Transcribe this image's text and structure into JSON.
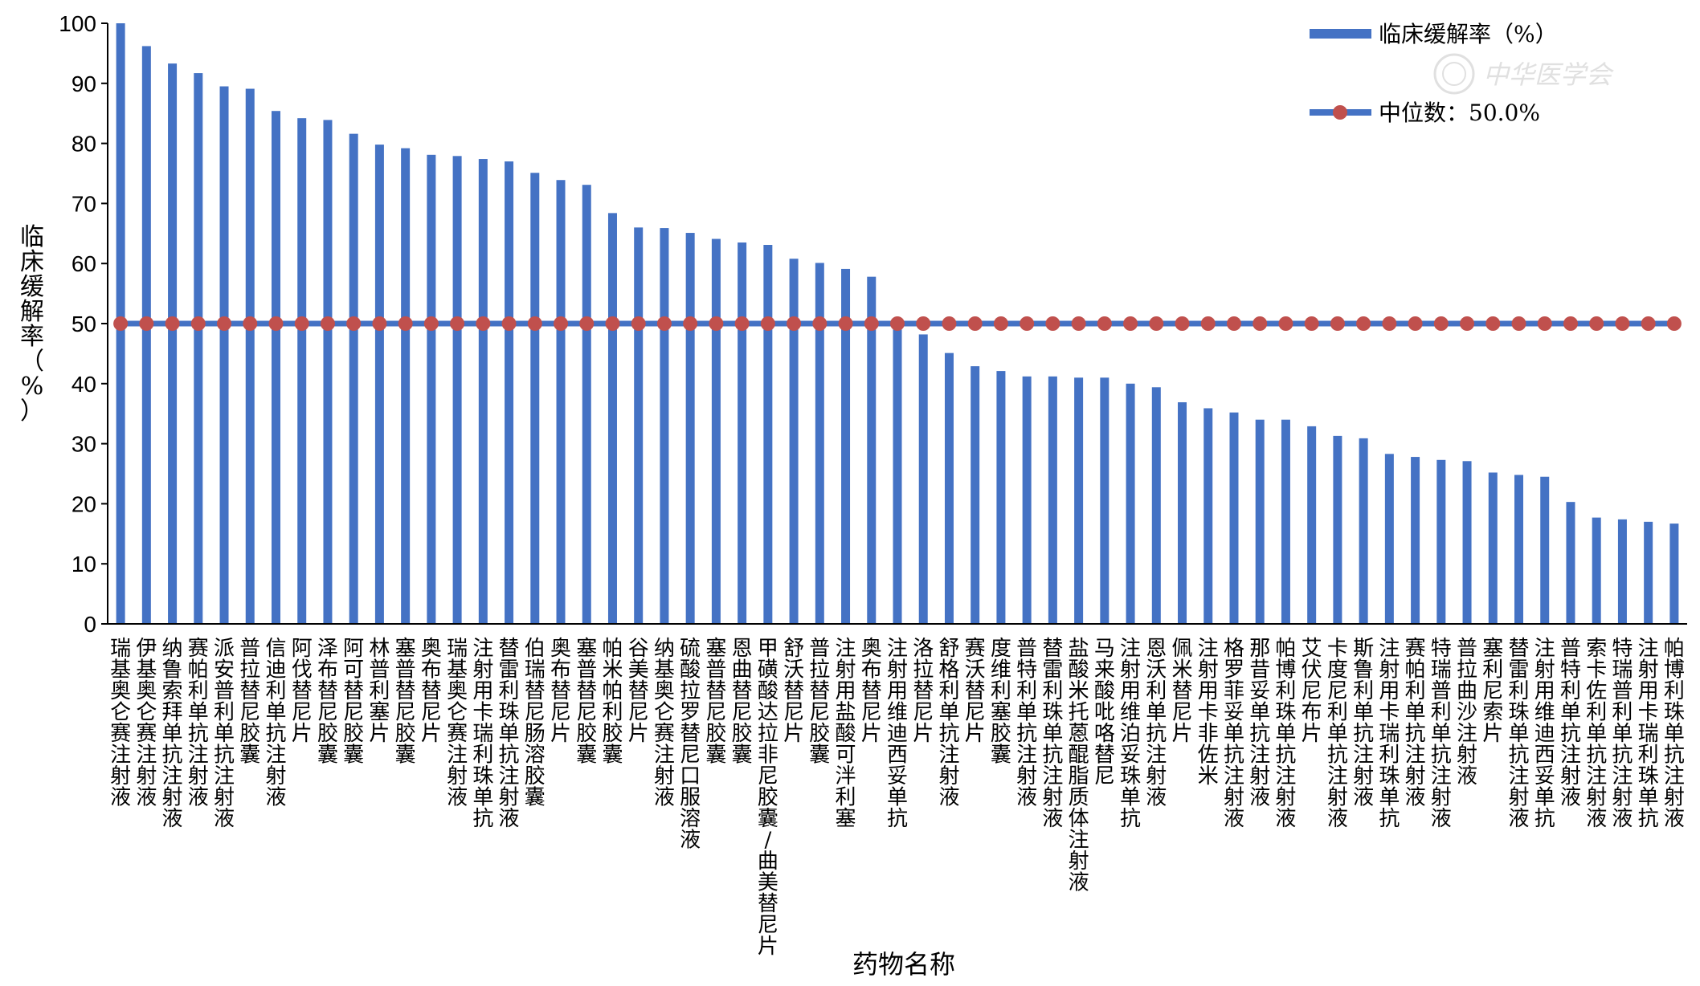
{
  "chart_data": {
    "type": "bar",
    "xlabel": "药物名称",
    "ylabel": "临床缓解率（%）",
    "ylim": [
      0,
      100
    ],
    "yticks": [
      "0",
      "10",
      "20",
      "30",
      "40",
      "50",
      "60",
      "70",
      "80",
      "90",
      "100"
    ],
    "grid": false,
    "legend_position": "top-right",
    "bar_color": "#4472c4",
    "median_color": "#c0504d",
    "categories": [
      "瑞基奥仑赛注射液",
      "伊基奥仑赛注射液",
      "纳鲁索拜单抗注射液",
      "赛帕利单抗注射液",
      "派安普利单抗注射液",
      "普拉替尼胶囊",
      "信迪利单抗注射液",
      "阿伐替尼片",
      "泽布替尼胶囊",
      "阿可替尼胶囊",
      "林普利塞片",
      "塞普替尼胶囊",
      "奥布替尼片",
      "瑞基奥仑赛注射液",
      "注射用卡瑞利珠单抗",
      "替雷利珠单抗注射液",
      "伯瑞替尼肠溶胶囊",
      "奥布替尼片",
      "塞普替尼胶囊",
      "帕米帕利胶囊",
      "谷美替尼片",
      "纳基奥仑赛注射液",
      "硫酸拉罗替尼口服溶液",
      "塞普替尼胶囊",
      "恩曲替尼胶囊",
      "甲磺酸达拉非尼胶囊/曲美替尼片",
      "舒沃替尼片",
      "普拉替尼胶囊",
      "注射用盐酸可泮利塞",
      "奥布替尼片",
      "注射用维迪西妥单抗",
      "洛拉替尼片",
      "舒格利单抗注射液",
      "赛沃替尼片",
      "度维利塞胶囊",
      "普特利单抗注射液",
      "替雷利珠单抗注射液",
      "盐酸米托蒽醌脂质体注射液",
      "马来酸吡咯替尼",
      "注射用维泊妥珠单抗",
      "恩沃利单抗注射液",
      "佩米替尼片",
      "注射用卡非佐米",
      "格罗菲妥单抗注射液",
      "那昔妥单抗注射液",
      "帕博利珠单抗注射液",
      "艾伏尼布片",
      "卡度尼利单抗注射液",
      "斯鲁利单抗注射液",
      "注射用卡瑞利珠单抗",
      "赛帕利单抗注射液",
      "特瑞普利单抗注射液",
      "普拉曲沙注射液",
      "塞利尼索片",
      "替雷利珠单抗注射液",
      "注射用维迪西妥单抗",
      "普特利单抗注射液",
      "索卡佐利单抗注射液",
      "特瑞普利单抗注射液",
      "注射用卡瑞利珠单抗",
      "帕博利珠单抗注射液"
    ],
    "series": [
      {
        "name": "临床缓解率（%）",
        "type": "bar",
        "values": [
          100,
          96.2,
          93.3,
          91.7,
          89.5,
          89.1,
          85.4,
          84.2,
          83.9,
          81.6,
          79.8,
          79.2,
          78.1,
          77.9,
          77.4,
          77.0,
          75.1,
          73.9,
          73.1,
          68.4,
          66.0,
          65.9,
          65.1,
          64.1,
          63.5,
          63.1,
          60.8,
          60.1,
          59.1,
          57.8,
          50.0,
          48.2,
          45.1,
          42.9,
          42.1,
          41.2,
          41.2,
          41.0,
          41.0,
          40.0,
          39.4,
          36.9,
          35.9,
          35.2,
          34.0,
          34.0,
          32.9,
          31.3,
          30.9,
          28.3,
          27.8,
          27.3,
          27.1,
          25.2,
          24.8,
          24.5,
          20.3,
          17.7,
          17.4,
          17.0,
          16.7
        ]
      },
      {
        "name": "中位数：50.0%",
        "type": "line",
        "value": 50.0
      }
    ],
    "watermark": "中华医学会"
  }
}
